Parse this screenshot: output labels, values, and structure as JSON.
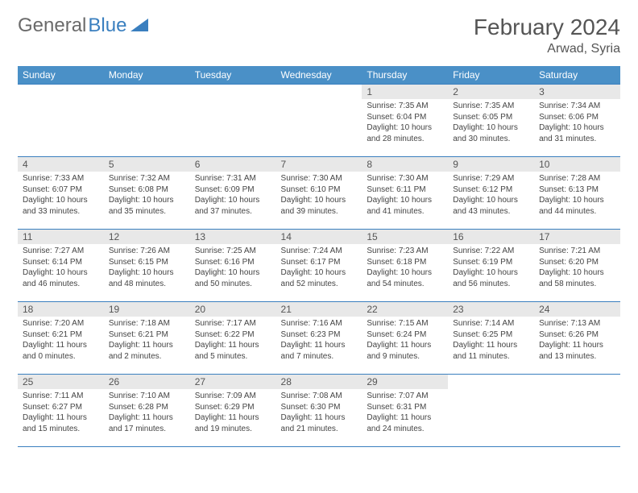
{
  "logo": {
    "text1": "General",
    "text2": "Blue",
    "color1": "#6a6a6a",
    "color2": "#3a7fbf"
  },
  "title": "February 2024",
  "location": "Arwad, Syria",
  "colors": {
    "header_bg": "#4a90c7",
    "header_text": "#ffffff",
    "border": "#3a7fbf",
    "daynum_bg": "#e8e8e8",
    "text": "#444444"
  },
  "day_names": [
    "Sunday",
    "Monday",
    "Tuesday",
    "Wednesday",
    "Thursday",
    "Friday",
    "Saturday"
  ],
  "weeks": [
    [
      {
        "num": "",
        "sunrise": "",
        "sunset": "",
        "daylight": ""
      },
      {
        "num": "",
        "sunrise": "",
        "sunset": "",
        "daylight": ""
      },
      {
        "num": "",
        "sunrise": "",
        "sunset": "",
        "daylight": ""
      },
      {
        "num": "",
        "sunrise": "",
        "sunset": "",
        "daylight": ""
      },
      {
        "num": "1",
        "sunrise": "Sunrise: 7:35 AM",
        "sunset": "Sunset: 6:04 PM",
        "daylight": "Daylight: 10 hours and 28 minutes."
      },
      {
        "num": "2",
        "sunrise": "Sunrise: 7:35 AM",
        "sunset": "Sunset: 6:05 PM",
        "daylight": "Daylight: 10 hours and 30 minutes."
      },
      {
        "num": "3",
        "sunrise": "Sunrise: 7:34 AM",
        "sunset": "Sunset: 6:06 PM",
        "daylight": "Daylight: 10 hours and 31 minutes."
      }
    ],
    [
      {
        "num": "4",
        "sunrise": "Sunrise: 7:33 AM",
        "sunset": "Sunset: 6:07 PM",
        "daylight": "Daylight: 10 hours and 33 minutes."
      },
      {
        "num": "5",
        "sunrise": "Sunrise: 7:32 AM",
        "sunset": "Sunset: 6:08 PM",
        "daylight": "Daylight: 10 hours and 35 minutes."
      },
      {
        "num": "6",
        "sunrise": "Sunrise: 7:31 AM",
        "sunset": "Sunset: 6:09 PM",
        "daylight": "Daylight: 10 hours and 37 minutes."
      },
      {
        "num": "7",
        "sunrise": "Sunrise: 7:30 AM",
        "sunset": "Sunset: 6:10 PM",
        "daylight": "Daylight: 10 hours and 39 minutes."
      },
      {
        "num": "8",
        "sunrise": "Sunrise: 7:30 AM",
        "sunset": "Sunset: 6:11 PM",
        "daylight": "Daylight: 10 hours and 41 minutes."
      },
      {
        "num": "9",
        "sunrise": "Sunrise: 7:29 AM",
        "sunset": "Sunset: 6:12 PM",
        "daylight": "Daylight: 10 hours and 43 minutes."
      },
      {
        "num": "10",
        "sunrise": "Sunrise: 7:28 AM",
        "sunset": "Sunset: 6:13 PM",
        "daylight": "Daylight: 10 hours and 44 minutes."
      }
    ],
    [
      {
        "num": "11",
        "sunrise": "Sunrise: 7:27 AM",
        "sunset": "Sunset: 6:14 PM",
        "daylight": "Daylight: 10 hours and 46 minutes."
      },
      {
        "num": "12",
        "sunrise": "Sunrise: 7:26 AM",
        "sunset": "Sunset: 6:15 PM",
        "daylight": "Daylight: 10 hours and 48 minutes."
      },
      {
        "num": "13",
        "sunrise": "Sunrise: 7:25 AM",
        "sunset": "Sunset: 6:16 PM",
        "daylight": "Daylight: 10 hours and 50 minutes."
      },
      {
        "num": "14",
        "sunrise": "Sunrise: 7:24 AM",
        "sunset": "Sunset: 6:17 PM",
        "daylight": "Daylight: 10 hours and 52 minutes."
      },
      {
        "num": "15",
        "sunrise": "Sunrise: 7:23 AM",
        "sunset": "Sunset: 6:18 PM",
        "daylight": "Daylight: 10 hours and 54 minutes."
      },
      {
        "num": "16",
        "sunrise": "Sunrise: 7:22 AM",
        "sunset": "Sunset: 6:19 PM",
        "daylight": "Daylight: 10 hours and 56 minutes."
      },
      {
        "num": "17",
        "sunrise": "Sunrise: 7:21 AM",
        "sunset": "Sunset: 6:20 PM",
        "daylight": "Daylight: 10 hours and 58 minutes."
      }
    ],
    [
      {
        "num": "18",
        "sunrise": "Sunrise: 7:20 AM",
        "sunset": "Sunset: 6:21 PM",
        "daylight": "Daylight: 11 hours and 0 minutes."
      },
      {
        "num": "19",
        "sunrise": "Sunrise: 7:18 AM",
        "sunset": "Sunset: 6:21 PM",
        "daylight": "Daylight: 11 hours and 2 minutes."
      },
      {
        "num": "20",
        "sunrise": "Sunrise: 7:17 AM",
        "sunset": "Sunset: 6:22 PM",
        "daylight": "Daylight: 11 hours and 5 minutes."
      },
      {
        "num": "21",
        "sunrise": "Sunrise: 7:16 AM",
        "sunset": "Sunset: 6:23 PM",
        "daylight": "Daylight: 11 hours and 7 minutes."
      },
      {
        "num": "22",
        "sunrise": "Sunrise: 7:15 AM",
        "sunset": "Sunset: 6:24 PM",
        "daylight": "Daylight: 11 hours and 9 minutes."
      },
      {
        "num": "23",
        "sunrise": "Sunrise: 7:14 AM",
        "sunset": "Sunset: 6:25 PM",
        "daylight": "Daylight: 11 hours and 11 minutes."
      },
      {
        "num": "24",
        "sunrise": "Sunrise: 7:13 AM",
        "sunset": "Sunset: 6:26 PM",
        "daylight": "Daylight: 11 hours and 13 minutes."
      }
    ],
    [
      {
        "num": "25",
        "sunrise": "Sunrise: 7:11 AM",
        "sunset": "Sunset: 6:27 PM",
        "daylight": "Daylight: 11 hours and 15 minutes."
      },
      {
        "num": "26",
        "sunrise": "Sunrise: 7:10 AM",
        "sunset": "Sunset: 6:28 PM",
        "daylight": "Daylight: 11 hours and 17 minutes."
      },
      {
        "num": "27",
        "sunrise": "Sunrise: 7:09 AM",
        "sunset": "Sunset: 6:29 PM",
        "daylight": "Daylight: 11 hours and 19 minutes."
      },
      {
        "num": "28",
        "sunrise": "Sunrise: 7:08 AM",
        "sunset": "Sunset: 6:30 PM",
        "daylight": "Daylight: 11 hours and 21 minutes."
      },
      {
        "num": "29",
        "sunrise": "Sunrise: 7:07 AM",
        "sunset": "Sunset: 6:31 PM",
        "daylight": "Daylight: 11 hours and 24 minutes."
      },
      {
        "num": "",
        "sunrise": "",
        "sunset": "",
        "daylight": ""
      },
      {
        "num": "",
        "sunrise": "",
        "sunset": "",
        "daylight": ""
      }
    ]
  ]
}
